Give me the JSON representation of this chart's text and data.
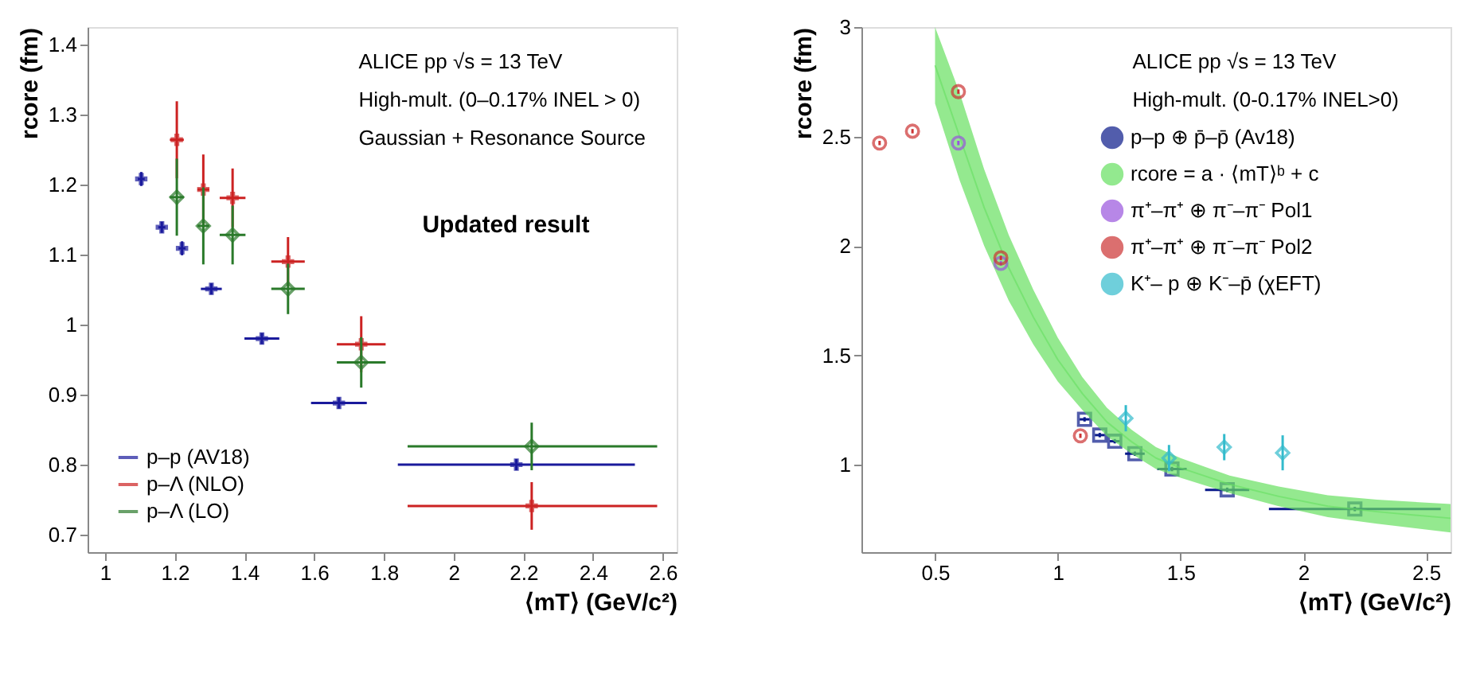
{
  "chart_data": [
    {
      "type": "scatter",
      "xlabel": "⟨mT⟩ (GeV/c²)",
      "ylabel": "rcore (fm)",
      "xlim": [
        0.95,
        2.64
      ],
      "ylim": [
        0.675,
        1.425
      ],
      "xticks": [
        1,
        1.2,
        1.4,
        1.6,
        1.8,
        2,
        2.2,
        2.4,
        2.6
      ],
      "yticks": [
        0.7,
        0.8,
        0.9,
        1,
        1.1,
        1.2,
        1.3,
        1.4
      ],
      "grid": false,
      "legend": "bottom left",
      "annotations": [
        "ALICE pp √s = 13 TeV",
        "High-mult. (0–0.17% INEL > 0)",
        "Gaussian + Resonance Source",
        "Updated result"
      ],
      "series": [
        {
          "name": "p–p (AV18)",
          "color": "#1a1a9c",
          "marker": "cross",
          "x": [
            1.104,
            1.163,
            1.221,
            1.305,
            1.45,
            1.671,
            2.18
          ],
          "values": [
            1.208,
            1.139,
            1.109,
            1.051,
            0.98,
            0.888,
            0.8
          ],
          "errors": [
            0.01,
            0.008,
            0.01,
            0.008,
            0.008,
            0.008,
            0.008
          ],
          "xerrors": [
            0.01,
            0.01,
            0.01,
            0.03,
            0.05,
            0.08,
            [
              1.84,
              2.52
            ]
          ]
        },
        {
          "name": "p–Λ (NLO)",
          "color": "#cc2222",
          "marker": "cross",
          "x": [
            1.206,
            1.282,
            1.366,
            1.525,
            1.735,
            2.224
          ],
          "values": [
            1.264,
            1.193,
            1.181,
            1.09,
            0.972,
            0.741
          ],
          "errors": [
            0.055,
            0.05,
            0.042,
            0.035,
            0.04,
            0.034
          ],
          "xerrors": [
            0.02,
            0.017,
            0.037,
            0.048,
            0.07,
            [
              1.868,
              2.584
            ]
          ]
        },
        {
          "name": "p–Λ (LO)",
          "color": "#2a7a2a",
          "marker": "diamond",
          "x": [
            1.206,
            1.282,
            1.366,
            1.525,
            1.735,
            2.224
          ],
          "values": [
            1.182,
            1.141,
            1.128,
            1.051,
            0.946,
            0.826
          ],
          "errors": [
            0.055,
            0.055,
            0.042,
            0.036,
            0.036,
            0.034
          ],
          "xerrors": [
            0.02,
            0.017,
            0.037,
            0.048,
            0.07,
            [
              1.868,
              2.584
            ]
          ]
        }
      ]
    },
    {
      "type": "scatter",
      "xlabel": "⟨mT⟩ (GeV/c²)",
      "ylabel": "rcore (fm)",
      "xlim": [
        0.2,
        2.6
      ],
      "ylim": [
        0.6,
        3
      ],
      "xticks": [
        0.5,
        1,
        1.5,
        2,
        2.5
      ],
      "yticks": [
        1,
        1.5,
        2,
        2.5,
        3
      ],
      "grid": false,
      "legend": "top right",
      "annotations": [
        "ALICE pp √s = 13 TeV",
        "High-mult. (0-0.17% INEL>0)"
      ],
      "series": [
        {
          "name": "p–p ⊕ p̄–p̄ (Av18)",
          "color": "#0a1a8a",
          "marker": "square",
          "x": [
            1.109,
            1.171,
            1.232,
            1.314,
            1.465,
            1.69,
            2.21
          ],
          "values": [
            1.207,
            1.135,
            1.107,
            1.05,
            0.98,
            0.885,
            0.797
          ],
          "errors": [
            0.01,
            0.01,
            0.01,
            0.01,
            0.01,
            0.01,
            0.01
          ],
          "xerrors": [
            0.02,
            0.02,
            0.02,
            0.04,
            0.06,
            0.09,
            [
              1.86,
              2.56
            ]
          ]
        },
        {
          "name": "rcore = a · ⟨mT⟩ᵇ + c",
          "type": "line",
          "color": "#66e060",
          "x": [
            0.5,
            0.6,
            0.7,
            0.8,
            0.9,
            1.0,
            1.1,
            1.2,
            1.3,
            1.4,
            1.5,
            1.7,
            1.9,
            2.1,
            2.3,
            2.6
          ],
          "values": [
            2.825,
            2.5,
            2.175,
            1.9,
            1.675,
            1.48,
            1.325,
            1.195,
            1.105,
            1.03,
            0.985,
            0.91,
            0.855,
            0.81,
            0.785,
            0.755
          ],
          "lower": [
            2.65,
            2.3,
            2.0,
            1.75,
            1.55,
            1.38,
            1.25,
            1.13,
            1.05,
            0.98,
            0.94,
            0.87,
            0.81,
            0.76,
            0.73,
            0.69
          ],
          "upper": [
            3.0,
            2.7,
            2.35,
            2.05,
            1.8,
            1.58,
            1.4,
            1.26,
            1.16,
            1.08,
            1.03,
            0.95,
            0.9,
            0.86,
            0.84,
            0.82
          ]
        },
        {
          "name": "π⁺–π⁺ ⊕ π⁻–π⁻ Pol1",
          "color": "#9955dd",
          "marker": "circle",
          "x": [
            0.595,
            0.768
          ],
          "values": [
            2.47,
            1.92
          ],
          "errors": [
            0.01,
            0.01
          ]
        },
        {
          "name": "π⁺–π⁺ ⊕ π⁻–π⁻ Pol2",
          "color": "#cc3333",
          "marker": "circle",
          "x": [
            0.274,
            0.408,
            0.595,
            0.768,
            1.092
          ],
          "values": [
            2.47,
            2.524,
            2.705,
            1.945,
            1.132
          ],
          "errors": [
            0.01,
            0.01,
            0.01,
            0.01,
            0.01
          ]
        },
        {
          "name": "K⁺– p ⊕ K⁻–p̄ (χEFT)",
          "color": "#33bbcc",
          "marker": "diamond",
          "x": [
            1.277,
            1.453,
            1.678,
            1.916
          ],
          "values": [
            1.212,
            1.03,
            1.08,
            1.054
          ],
          "errors": [
            0.06,
            0.06,
            0.06,
            0.08
          ]
        }
      ]
    }
  ]
}
